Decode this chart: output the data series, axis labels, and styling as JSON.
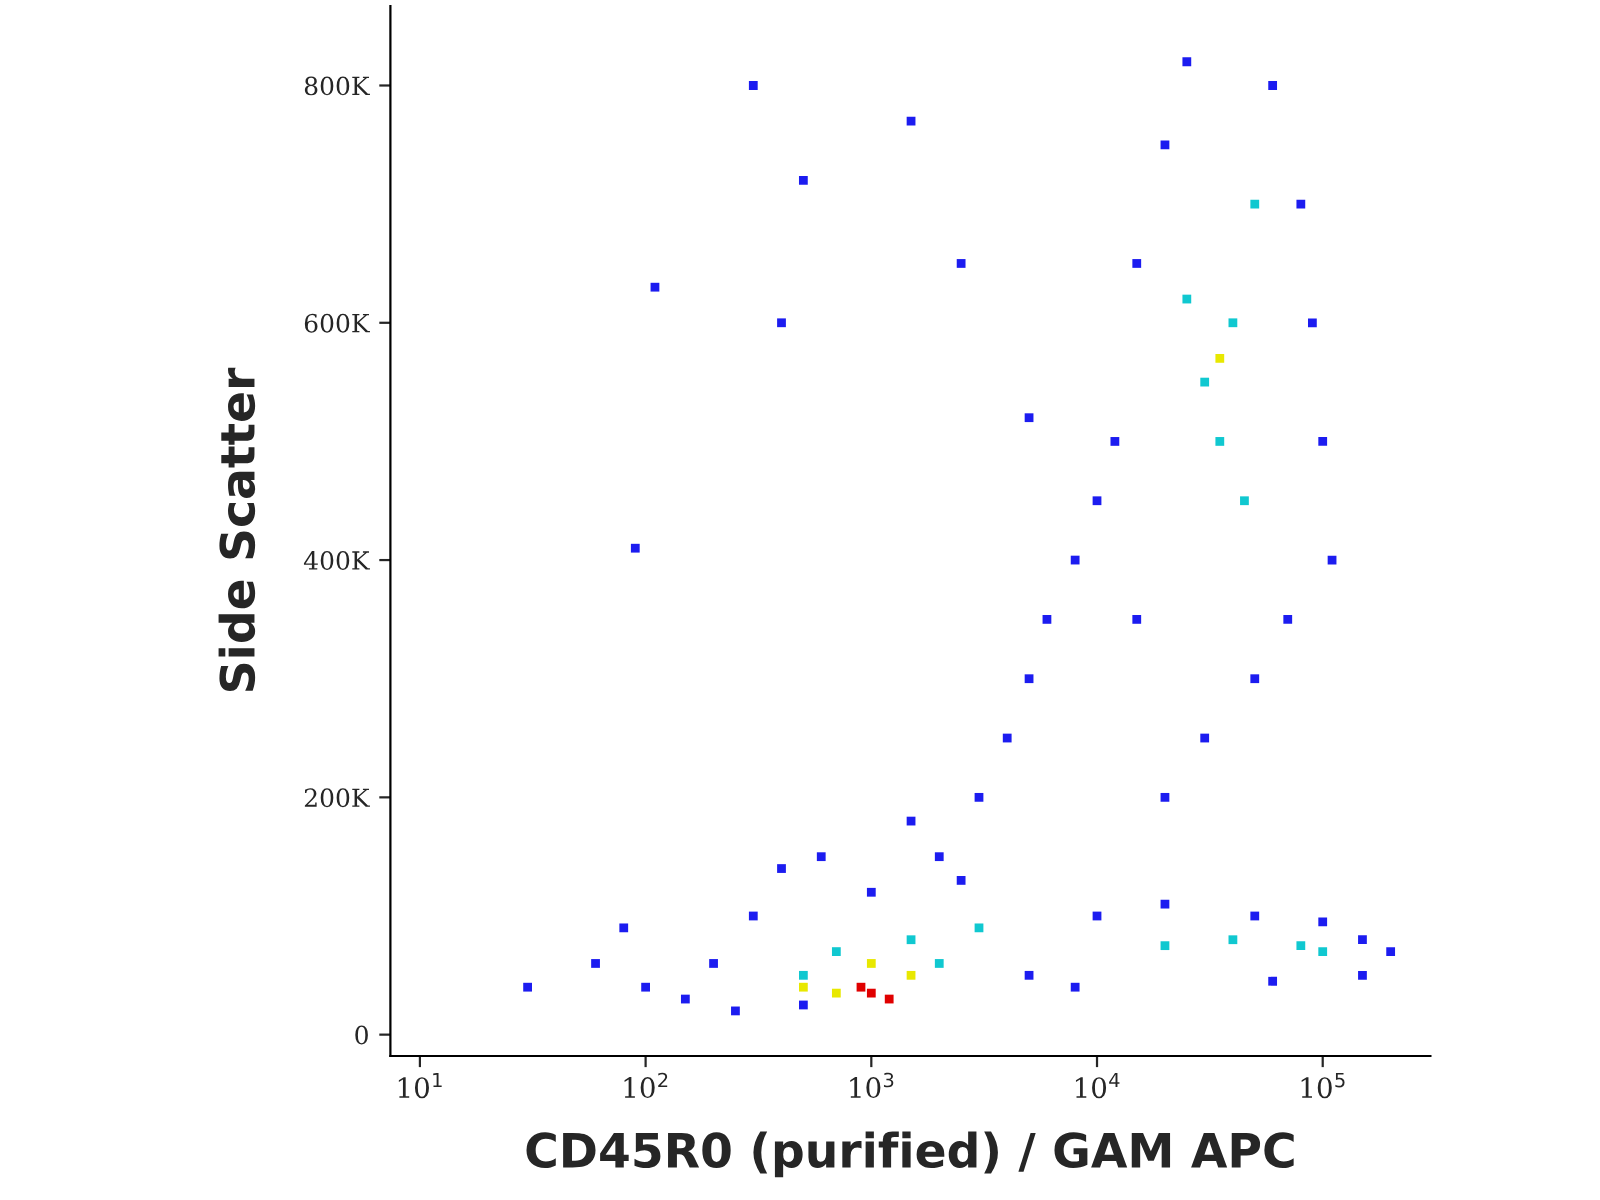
{
  "chart_data": {
    "type": "scatter",
    "xlabel": "CD45R0 (purified) / GAM APC",
    "ylabel": "Side Scatter",
    "log": "x",
    "marker": "square",
    "grid": false,
    "legend": false,
    "xlim": [
      7.4,
      300000
    ],
    "ylim": [
      -18000,
      867000
    ],
    "xticks": [
      {
        "value": 10,
        "label": "10$^{1}$"
      },
      {
        "value": 100,
        "label": "10$^{2}$"
      },
      {
        "value": 1000,
        "label": "10$^{3}$"
      },
      {
        "value": 10000,
        "label": "10$^{4}$"
      },
      {
        "value": 100000,
        "label": "10$^{5}$"
      }
    ],
    "yticks": [
      {
        "value": 0,
        "label": "0"
      },
      {
        "value": 200000,
        "label": "200K"
      },
      {
        "value": 400000,
        "label": "400K"
      },
      {
        "value": 600000,
        "label": "600K"
      },
      {
        "value": 800000,
        "label": "800K"
      }
    ],
    "series": [
      {
        "color": "#1c1cf0",
        "x": [
          150,
          200,
          300,
          250,
          400,
          600,
          1000,
          2000,
          3000,
          4000,
          5000,
          6000,
          8000,
          500,
          100,
          80,
          60,
          30,
          1500,
          2500,
          10000,
          12000,
          15000,
          20000,
          25000,
          60000,
          80000,
          90000,
          100000,
          110000,
          70000,
          50000,
          30000,
          20000,
          15000,
          5000,
          10000,
          20000,
          50000,
          100000,
          150000,
          200000,
          150000,
          60000,
          8000,
          110,
          90,
          300,
          500,
          1500,
          2500,
          5000,
          400
        ],
        "values": [
          30000,
          60000,
          100000,
          20000,
          140000,
          150000,
          120000,
          150000,
          200000,
          250000,
          300000,
          350000,
          400000,
          25000,
          40000,
          90000,
          60000,
          40000,
          180000,
          130000,
          450000,
          500000,
          650000,
          750000,
          820000,
          800000,
          700000,
          600000,
          500000,
          400000,
          350000,
          300000,
          250000,
          200000,
          350000,
          50000,
          100000,
          110000,
          100000,
          95000,
          80000,
          70000,
          50000,
          45000,
          40000,
          630000,
          410000,
          800000,
          720000,
          770000,
          650000,
          520000,
          600000
        ]
      },
      {
        "color": "#10c8d0",
        "x": [
          500,
          700,
          1500,
          2000,
          3000,
          30000,
          40000,
          35000,
          45000,
          25000,
          50000,
          40000,
          80000,
          20000,
          100000
        ],
        "values": [
          50000,
          70000,
          80000,
          60000,
          90000,
          550000,
          600000,
          500000,
          450000,
          620000,
          700000,
          80000,
          75000,
          75000,
          70000
        ]
      },
      {
        "color": "#e8e800",
        "x": [
          700,
          1500,
          500,
          35000,
          1000
        ],
        "values": [
          35000,
          50000,
          40000,
          570000,
          60000
        ]
      },
      {
        "color": "#e00000",
        "x": [
          1000,
          1200,
          900
        ],
        "values": [
          35000,
          30000,
          40000
        ]
      }
    ]
  }
}
